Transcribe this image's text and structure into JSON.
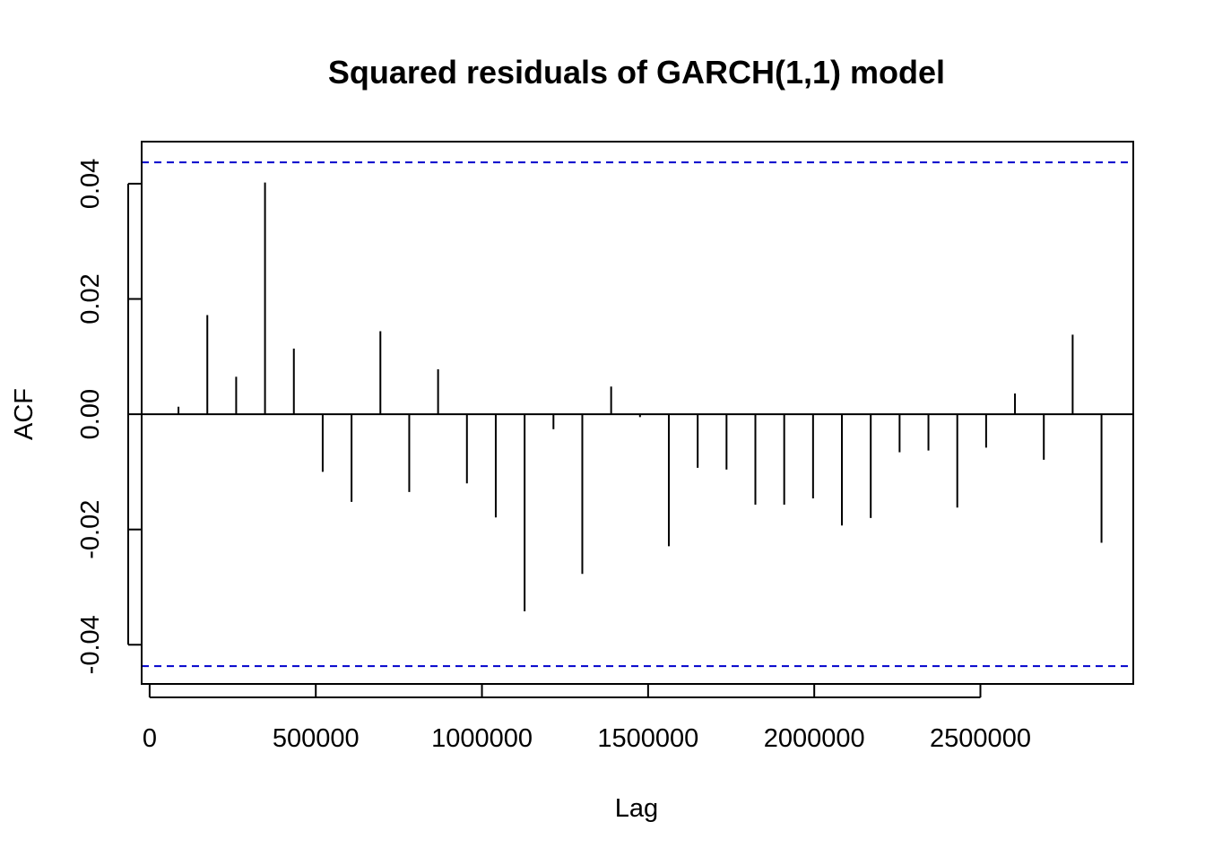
{
  "chart_data": {
    "type": "bar",
    "subtype": "acf-spike",
    "title": "Squared residuals of GARCH(1,1) model",
    "xlabel": "Lag",
    "ylabel": "ACF",
    "xlim": [
      -24000,
      2960000
    ],
    "ylim": [
      -0.0468,
      0.0473
    ],
    "xticks": [
      0,
      500000,
      1000000,
      1500000,
      2000000,
      2500000
    ],
    "xtick_labels": [
      "0",
      "500000",
      "1000000",
      "1500000",
      "2000000",
      "2500000"
    ],
    "yticks": [
      -0.04,
      -0.02,
      0.0,
      0.02,
      0.04
    ],
    "ytick_labels": [
      "-0.04",
      "-0.02",
      "0.00",
      "0.02",
      "0.04"
    ],
    "confidence_bounds": [
      0.0437,
      -0.0437
    ],
    "grid": false,
    "legend": "none",
    "colors": {
      "spike": "#000000",
      "confidence_line": "#0000cc",
      "zero_line": "#000000"
    },
    "x": [
      86800,
      173600,
      260400,
      347200,
      434000,
      520800,
      607600,
      694400,
      781200,
      868000,
      954800,
      1041600,
      1128400,
      1215200,
      1302000,
      1388800,
      1475600,
      1562400,
      1649200,
      1736000,
      1822800,
      1909600,
      1996400,
      2083200,
      2170000,
      2256800,
      2343600,
      2430400,
      2517200,
      2604000,
      2690800,
      2777600,
      2864400
    ],
    "values": [
      0.0013,
      0.0172,
      0.0065,
      0.0402,
      0.0114,
      -0.01,
      -0.0152,
      0.0144,
      -0.0135,
      0.0078,
      -0.012,
      -0.0179,
      -0.0342,
      -0.0026,
      -0.0277,
      0.0048,
      -0.0005,
      -0.0229,
      -0.0093,
      -0.0096,
      -0.0157,
      -0.0157,
      -0.0146,
      -0.0193,
      -0.018,
      -0.0066,
      -0.0063,
      -0.0162,
      -0.0058,
      0.0036,
      -0.0079,
      0.0138,
      -0.0223
    ]
  }
}
